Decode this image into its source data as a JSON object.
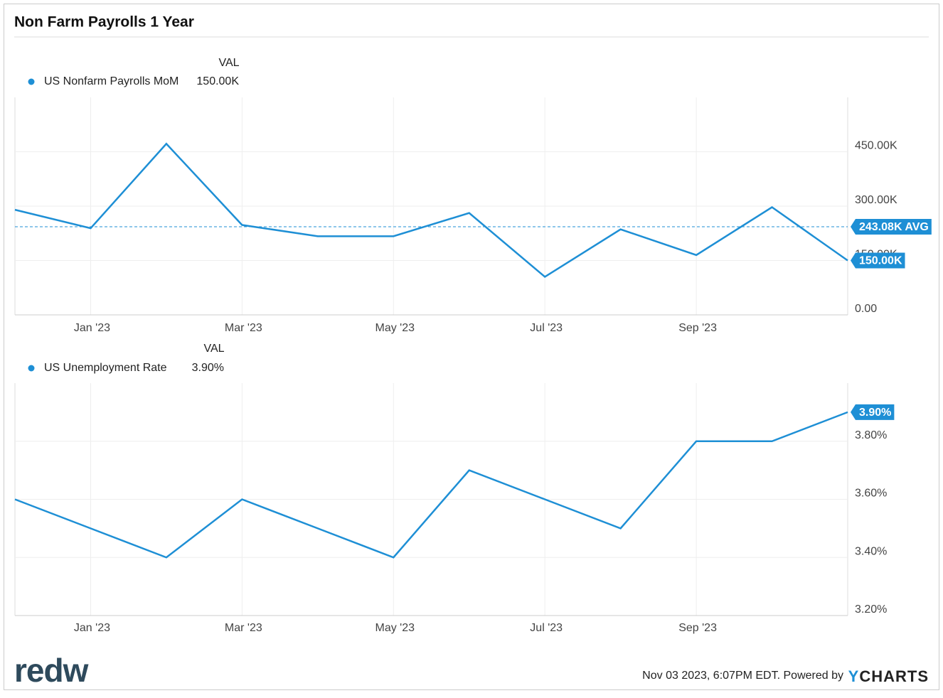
{
  "page_title": "Non Farm Payrolls 1 Year",
  "chart_data": [
    {
      "type": "line",
      "legend_header": "VAL",
      "categories": [
        null,
        "Jan '23",
        null,
        "Mar '23",
        null,
        "May '23",
        null,
        "Jul '23",
        null,
        "Sep '23",
        null,
        null
      ],
      "series": [
        {
          "name": "US Nonfarm Payrolls MoM",
          "color": "#1e8fd5",
          "values": [
            290000,
            239000,
            472000,
            248000,
            217000,
            217000,
            281000,
            105000,
            236000,
            165000,
            297000,
            150000
          ],
          "value_labels": [
            null,
            null,
            null,
            null,
            null,
            null,
            null,
            null,
            null,
            null,
            null,
            "150.00K"
          ]
        }
      ],
      "avg": {
        "value": 243080,
        "label": "243.08K AVG"
      },
      "ylim": [
        0,
        600000
      ],
      "yticks": [
        {
          "value": 0,
          "label": "0.00"
        },
        {
          "value": 150000,
          "label": "150.00K"
        },
        {
          "value": 300000,
          "label": "300.00K"
        },
        {
          "value": 450000,
          "label": "450.00K"
        }
      ],
      "grid": true
    },
    {
      "type": "line",
      "legend_header": "VAL",
      "categories": [
        null,
        "Jan '23",
        null,
        "Mar '23",
        null,
        "May '23",
        null,
        "Jul '23",
        null,
        "Sep '23",
        null,
        null
      ],
      "series": [
        {
          "name": "US Unemployment Rate",
          "color": "#1e8fd5",
          "values": [
            3.6,
            3.5,
            3.4,
            3.6,
            3.5,
            3.4,
            3.7,
            3.6,
            3.5,
            3.8,
            3.8,
            3.9
          ],
          "value_labels": [
            null,
            null,
            null,
            null,
            null,
            null,
            null,
            null,
            null,
            null,
            null,
            "3.90%"
          ]
        }
      ],
      "ylim": [
        3.2,
        4.0
      ],
      "yticks": [
        {
          "value": 3.2,
          "label": "3.20%"
        },
        {
          "value": 3.4,
          "label": "3.40%"
        },
        {
          "value": 3.6,
          "label": "3.60%"
        },
        {
          "value": 3.8,
          "label": "3.80%"
        }
      ],
      "grid": true
    }
  ],
  "footer": {
    "logo": "redw",
    "stamp": "Nov 03 2023, 6:07PM EDT. Powered by",
    "brand": "YCHARTS"
  }
}
